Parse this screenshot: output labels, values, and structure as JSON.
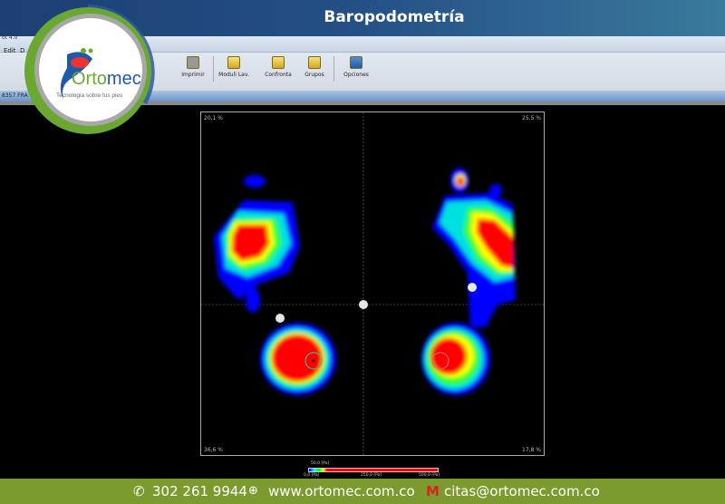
{
  "header": {
    "title": "Baropodometría"
  },
  "app": {
    "window_title_fragment": "ot 4.0",
    "menu": [
      "Edit",
      "D"
    ],
    "patient_fragment": "8357 FRA"
  },
  "toolbar": {
    "buttons": [
      {
        "label": "Imprimir",
        "icon": "printer-icon"
      },
      {
        "label": "Moduli Lav.",
        "icon": "module-icon"
      },
      {
        "label": "Confronta",
        "icon": "compare-icon"
      },
      {
        "label": "Grupos",
        "icon": "groups-icon"
      },
      {
        "label": "Opciones",
        "icon": "options-icon"
      }
    ]
  },
  "logo": {
    "name": "Ortomec",
    "tagline": "Tecnologia sobre tus pies"
  },
  "plot": {
    "corners": {
      "top_left": "20,1 %",
      "top_right": "25,5 %",
      "bottom_left": "36,6 %",
      "bottom_right": "17,8 %"
    }
  },
  "scale": {
    "marker": "50,0 [Pa]",
    "min": "0,0 [Pa]",
    "mid": "250,0 [Pa]",
    "max": "500,0 [Pa]",
    "colors": [
      "#0000ff",
      "#00ffff",
      "#00ff00",
      "#ffff00",
      "#ff0000"
    ]
  },
  "footer": {
    "phone": "302 261 9944",
    "website": "www.ortomec.com.co",
    "email": "citas@ortomec.com.co"
  },
  "colors": {
    "banner": "#1d3f73",
    "footer": "#7b9b2f",
    "accent_green": "#6aa832"
  }
}
